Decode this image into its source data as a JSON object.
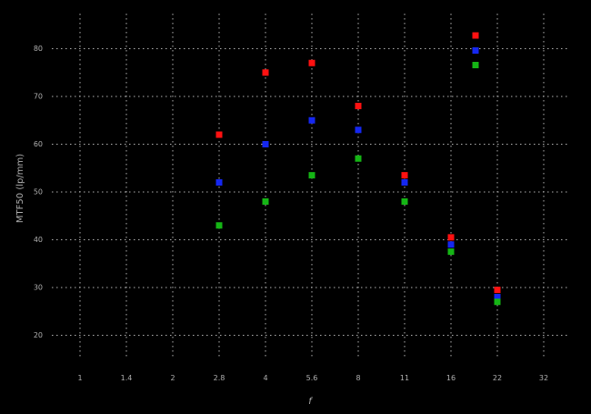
{
  "chart_data": {
    "type": "scatter",
    "title": "",
    "xlabel": "f",
    "ylabel": "MTF50 (lp/mm)",
    "x_scale": "log2 (f-stop series, evenly spaced ticks)",
    "x_ticks": [
      "1",
      "1.4",
      "2",
      "2.8",
      "4",
      "5.6",
      "8",
      "11",
      "16",
      "22",
      "32"
    ],
    "y_ticks": [
      80,
      70,
      60,
      50,
      40,
      30,
      20
    ],
    "ylim": [
      13,
      87.5
    ],
    "grid": "on (dotted)",
    "marker": "filled-square",
    "legend_position": "top-right-inside, markers only (no visible text)",
    "series": [
      {
        "name": "series-red",
        "color": "#ff1111",
        "x": [
          "2.8",
          "4",
          "5.6",
          "8",
          "11",
          "16",
          "22"
        ],
        "values": [
          62,
          75,
          77,
          68,
          53.5,
          40.5,
          29.5
        ]
      },
      {
        "name": "series-blue",
        "color": "#1527f0",
        "x": [
          "2.8",
          "4",
          "5.6",
          "8",
          "11",
          "16",
          "22"
        ],
        "values": [
          52,
          60,
          65,
          63,
          52,
          39,
          28
        ]
      },
      {
        "name": "series-green",
        "color": "#15b515",
        "x": [
          "2.8",
          "4",
          "5.6",
          "8",
          "11",
          "16",
          "22"
        ],
        "values": [
          43,
          48,
          53.5,
          57,
          48,
          37.5,
          27
        ]
      }
    ],
    "colors": {
      "background": "#000000",
      "grid": "#cfcfcf",
      "text": "#b0b0b0"
    }
  }
}
